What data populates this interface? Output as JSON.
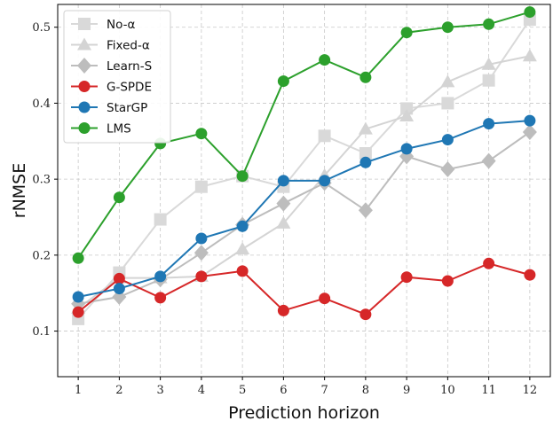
{
  "chart_data": {
    "type": "line",
    "xlabel": "Prediction horizon",
    "ylabel": "rNMSE",
    "x": [
      1,
      2,
      3,
      4,
      5,
      6,
      7,
      8,
      9,
      10,
      11,
      12
    ],
    "xlim": [
      0.5,
      12.5
    ],
    "ylim": [
      0.04,
      0.53
    ],
    "yticks": [
      0.1,
      0.2,
      0.3,
      0.4,
      0.5
    ],
    "grid": true,
    "legend_position": "top-left",
    "series": [
      {
        "name": "No-α",
        "color": "#d9d9d9",
        "marker": "square",
        "values": [
          0.116,
          0.177,
          0.247,
          0.29,
          0.304,
          0.29,
          0.357,
          0.334,
          0.393,
          0.4,
          0.43,
          0.51
        ]
      },
      {
        "name": "Fixed-α",
        "color": "#d4d4d4",
        "marker": "triangle",
        "values": [
          0.13,
          0.17,
          0.17,
          0.172,
          0.208,
          0.242,
          0.305,
          0.366,
          0.383,
          0.428,
          0.451,
          0.462
        ]
      },
      {
        "name": "Learn-S",
        "color": "#bdbdbd",
        "marker": "diamond",
        "values": [
          0.136,
          0.145,
          0.168,
          0.203,
          0.24,
          0.268,
          0.295,
          0.259,
          0.33,
          0.313,
          0.324,
          0.362
        ]
      },
      {
        "name": "G-SPDE",
        "color": "#d62728",
        "marker": "circle",
        "values": [
          0.125,
          0.169,
          0.144,
          0.172,
          0.179,
          0.127,
          0.143,
          0.122,
          0.171,
          0.166,
          0.189,
          0.174
        ]
      },
      {
        "name": "StarGP",
        "color": "#1f77b4",
        "marker": "circle",
        "values": [
          0.145,
          0.156,
          0.172,
          0.222,
          0.238,
          0.298,
          0.298,
          0.322,
          0.34,
          0.352,
          0.373,
          0.377
        ]
      },
      {
        "name": "LMS",
        "color": "#2ca02c",
        "marker": "circle",
        "values": [
          0.196,
          0.276,
          0.347,
          0.36,
          0.304,
          0.429,
          0.457,
          0.434,
          0.493,
          0.5,
          0.504,
          0.52
        ]
      }
    ]
  }
}
